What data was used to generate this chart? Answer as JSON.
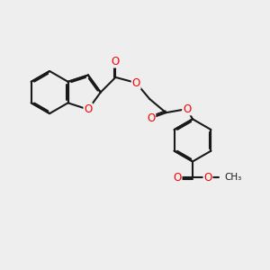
{
  "bg": "#eeeeee",
  "bc": "#1a1a1a",
  "oc": "#ff0000",
  "lw": 1.5,
  "dbo": 0.055,
  "fs": 8.5,
  "figsize": [
    3.0,
    3.0
  ],
  "dpi": 100,
  "xlim": [
    -2.5,
    6.5
  ],
  "ylim": [
    -4.0,
    3.5
  ]
}
